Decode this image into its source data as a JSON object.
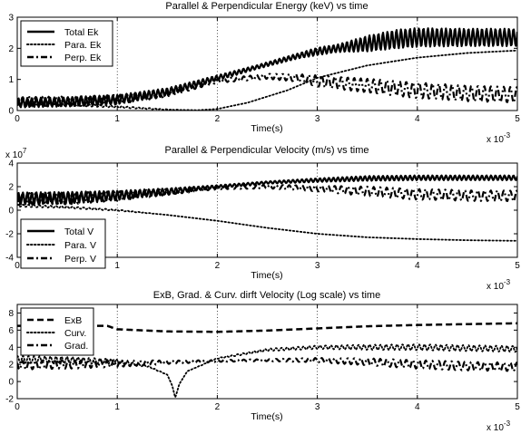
{
  "figure": {
    "background": "#ffffff",
    "ink": "#000000"
  },
  "chart_data": [
    {
      "type": "line",
      "title": "Parallel & Perpendicular Energy (keV) vs time",
      "xlabel": "Time(s)",
      "x_exponent_label": "x 10",
      "x_exponent": "-3",
      "y_exponent_label": "",
      "y_exponent": "",
      "ylabel": "",
      "xlim": [
        0,
        5
      ],
      "ylim": [
        0,
        3
      ],
      "xticks": [
        0,
        1,
        2,
        3,
        4,
        5
      ],
      "xtick_labels": [
        "0",
        "1",
        "2",
        "3",
        "4",
        "5"
      ],
      "yticks": [
        0,
        1,
        2,
        3
      ],
      "ytick_labels": [
        "0",
        "1",
        "2",
        "3"
      ],
      "grid": "vertical dotted at x ticks",
      "legend_position": "top-left",
      "series": [
        {
          "name": "Total Ek",
          "style": "solid",
          "x": [
            0,
            0.5,
            1.0,
            1.5,
            2.0,
            2.4,
            2.8,
            3.0,
            3.2,
            3.5,
            3.8,
            4.0,
            4.5,
            5.0
          ],
          "y": [
            0.25,
            0.28,
            0.35,
            0.6,
            1.05,
            1.4,
            1.75,
            1.9,
            2.0,
            2.15,
            2.3,
            2.35,
            2.35,
            2.35
          ],
          "osc": [
            0.15,
            0.15,
            0.15,
            0.12,
            0.08,
            0.06,
            0.08,
            0.12,
            0.12,
            0.25,
            0.3,
            0.3,
            0.28,
            0.28
          ]
        },
        {
          "name": "Para. Ek",
          "style": "dotted",
          "x": [
            0,
            0.5,
            1.0,
            1.5,
            1.8,
            2.0,
            2.3,
            2.7,
            3.0,
            3.5,
            4.0,
            4.5,
            5.0
          ],
          "y": [
            0.25,
            0.2,
            0.12,
            0.03,
            0.01,
            0.05,
            0.25,
            0.65,
            1.05,
            1.45,
            1.7,
            1.85,
            1.93
          ],
          "osc": [
            0.05,
            0.04,
            0.03,
            0.01,
            0,
            0,
            0,
            0,
            0,
            0,
            0,
            0,
            0
          ]
        },
        {
          "name": "Perp. Ek",
          "style": "dashdot",
          "x": [
            0,
            0.5,
            1.0,
            1.5,
            2.0,
            2.5,
            2.8,
            3.0,
            3.5,
            4.0,
            4.5,
            5.0
          ],
          "y": [
            0.28,
            0.3,
            0.35,
            0.55,
            0.95,
            1.1,
            1.05,
            0.95,
            0.8,
            0.65,
            0.55,
            0.5
          ],
          "osc": [
            0.15,
            0.15,
            0.15,
            0.1,
            0.06,
            0.08,
            0.12,
            0.18,
            0.22,
            0.25,
            0.25,
            0.25
          ]
        }
      ]
    },
    {
      "type": "line",
      "title": "Parallel & Perpendicular Velocity (m/s) vs time",
      "xlabel": "Time(s)",
      "x_exponent_label": "x 10",
      "x_exponent": "-3",
      "y_exponent_label": "x 10",
      "y_exponent": "7",
      "ylabel": "",
      "xlim": [
        0,
        5
      ],
      "ylim": [
        -4,
        4
      ],
      "xticks": [
        0,
        1,
        2,
        3,
        4,
        5
      ],
      "xtick_labels": [
        "0",
        "1",
        "2",
        "3",
        "4",
        "5"
      ],
      "yticks": [
        -4,
        -2,
        0,
        2,
        4
      ],
      "ytick_labels": [
        "-4",
        "-2",
        "0",
        "2",
        "4"
      ],
      "grid": "vertical dotted at x ticks",
      "legend_position": "bottom-left",
      "series": [
        {
          "name": "Total V",
          "style": "solid",
          "x": [
            0,
            0.5,
            1.0,
            1.5,
            2.0,
            2.5,
            3.0,
            3.5,
            4.0,
            4.5,
            5.0
          ],
          "y": [
            1.0,
            1.05,
            1.25,
            1.6,
            2.0,
            2.35,
            2.55,
            2.7,
            2.75,
            2.75,
            2.75
          ],
          "osc": [
            0.5,
            0.5,
            0.4,
            0.25,
            0.12,
            0.1,
            0.15,
            0.2,
            0.2,
            0.2,
            0.2
          ]
        },
        {
          "name": "Para. V",
          "style": "dotted",
          "x": [
            0,
            0.5,
            1.0,
            1.5,
            2.0,
            2.5,
            3.0,
            3.5,
            4.0,
            4.5,
            5.0
          ],
          "y": [
            0.4,
            0.25,
            0.0,
            -0.4,
            -0.9,
            -1.5,
            -2.0,
            -2.3,
            -2.45,
            -2.55,
            -2.6
          ],
          "osc": [
            0.1,
            0.08,
            0.05,
            0,
            0,
            0,
            0,
            0,
            0,
            0,
            0
          ]
        },
        {
          "name": "Perp. V",
          "style": "dashdot",
          "x": [
            0,
            0.5,
            1.0,
            1.5,
            2.0,
            2.5,
            3.0,
            3.5,
            4.0,
            4.5,
            5.0
          ],
          "y": [
            0.95,
            1.0,
            1.2,
            1.55,
            1.9,
            2.0,
            1.85,
            1.6,
            1.35,
            1.25,
            1.2
          ],
          "osc": [
            0.5,
            0.5,
            0.4,
            0.25,
            0.12,
            0.15,
            0.25,
            0.4,
            0.45,
            0.45,
            0.45
          ]
        }
      ]
    },
    {
      "type": "line",
      "title": "ExB, Grad. & Curv. dirft Velocity (Log scale) vs time",
      "xlabel": "Time(s)",
      "x_exponent_label": "x 10",
      "x_exponent": "-3",
      "y_exponent_label": "",
      "y_exponent": "",
      "ylabel": "",
      "xlim": [
        0,
        5
      ],
      "ylim": [
        -2,
        9
      ],
      "xticks": [
        0,
        1,
        2,
        3,
        4,
        5
      ],
      "xtick_labels": [
        "0",
        "1",
        "2",
        "3",
        "4",
        "5"
      ],
      "yticks": [
        -2,
        0,
        2,
        4,
        6,
        8
      ],
      "ytick_labels": [
        "-2",
        "0",
        "2",
        "4",
        "6",
        "8"
      ],
      "grid": "vertical dotted at x ticks",
      "legend_position": "top-left",
      "series": [
        {
          "name": "ExB",
          "style": "dashed",
          "x": [
            0,
            0.9,
            1.0,
            1.5,
            2.0,
            2.5,
            3.0,
            3.5,
            4.0,
            4.5,
            5.0
          ],
          "y": [
            6.5,
            6.5,
            6.1,
            5.85,
            5.8,
            5.95,
            6.2,
            6.45,
            6.6,
            6.7,
            6.8
          ],
          "osc": [
            0,
            0,
            0,
            0,
            0,
            0,
            0,
            0,
            0,
            0,
            0
          ]
        },
        {
          "name": "Curv.",
          "style": "dotted",
          "x": [
            0,
            0.5,
            1.0,
            1.3,
            1.5,
            1.55,
            1.58,
            1.62,
            1.7,
            2.0,
            2.5,
            3.0,
            3.5,
            4.0,
            4.5,
            5.0
          ],
          "y": [
            2.6,
            2.5,
            2.3,
            1.8,
            0.8,
            -0.5,
            -1.9,
            -0.3,
            1.2,
            2.7,
            3.7,
            4.0,
            4.0,
            4.0,
            3.9,
            3.8
          ],
          "osc": [
            0.4,
            0.4,
            0.3,
            0.1,
            0,
            0,
            0,
            0,
            0,
            0.05,
            0.15,
            0.2,
            0.3,
            0.35,
            0.35,
            0.35
          ]
        },
        {
          "name": "Grad.",
          "style": "dashdot",
          "x": [
            0,
            0.5,
            1.0,
            1.5,
            2.0,
            2.5,
            3.0,
            3.5,
            4.0,
            4.5,
            5.0
          ],
          "y": [
            1.9,
            2.0,
            2.1,
            2.25,
            2.4,
            2.5,
            2.5,
            2.3,
            2.0,
            1.8,
            1.7
          ],
          "osc": [
            0.5,
            0.5,
            0.4,
            0.2,
            0.1,
            0.12,
            0.25,
            0.4,
            0.5,
            0.5,
            0.5
          ]
        }
      ]
    }
  ]
}
